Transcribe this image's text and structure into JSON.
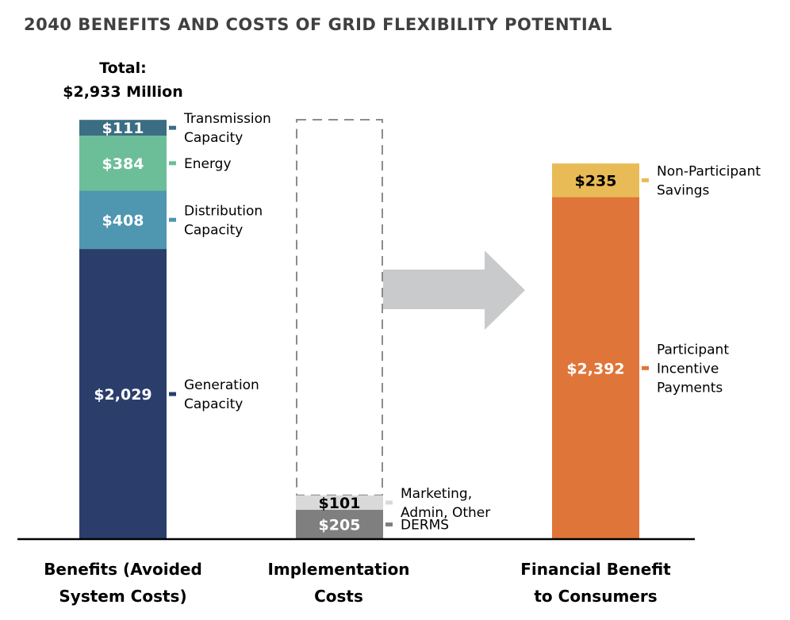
{
  "chart_data": {
    "type": "bar",
    "stacked": true,
    "title": "2040 BENEFITS AND COSTS OF GRID FLEXIBILITY POTENTIAL",
    "unit": "$ Million",
    "total_annotation": [
      "Total:",
      "$2,933 Million"
    ],
    "categories": [
      [
        "Benefits (Avoided",
        "System Costs)"
      ],
      [
        "Implementation",
        "Costs"
      ],
      [
        "Financial Benefit",
        "to Consumers"
      ]
    ],
    "series_by_category": [
      [
        {
          "name": [
            "Generation",
            "Capacity"
          ],
          "value": 2029,
          "label": "$2,029",
          "color": "#2b3e6b",
          "text_color": "#ffffff"
        },
        {
          "name": [
            "Distribution",
            "Capacity"
          ],
          "value": 408,
          "label": "$408",
          "color": "#4f96b0",
          "text_color": "#ffffff"
        },
        {
          "name": [
            "Energy"
          ],
          "value": 384,
          "label": "$384",
          "color": "#6cbe98",
          "text_color": "#ffffff"
        },
        {
          "name": [
            "Transmission",
            "Capacity"
          ],
          "value": 111,
          "label": "$111",
          "color": "#3b6e82",
          "text_color": "#ffffff"
        }
      ],
      [
        {
          "name": [
            "DERMS"
          ],
          "value": 205,
          "label": "$205",
          "color": "#7f7f80",
          "text_color": "#ffffff"
        },
        {
          "name": [
            "Marketing,",
            "Admin, Other"
          ],
          "value": 101,
          "label": "$101",
          "color": "#d9d9d9",
          "text_color": "#000000"
        }
      ],
      [
        {
          "name": [
            "Participant",
            "Incentive",
            "Payments"
          ],
          "value": 2392,
          "label": "$2,392",
          "color": "#e07539",
          "text_color": "#ffffff"
        },
        {
          "name": [
            "Non-Participant",
            "Savings"
          ],
          "value": 235,
          "label": "$235",
          "color": "#e9bb56",
          "text_color": "#000000"
        }
      ]
    ],
    "dashed_outline_total": 2933,
    "arrow": {
      "from": "Implementation Costs",
      "to": "Financial Benefit to Consumers",
      "color": "#c9cacb"
    }
  }
}
